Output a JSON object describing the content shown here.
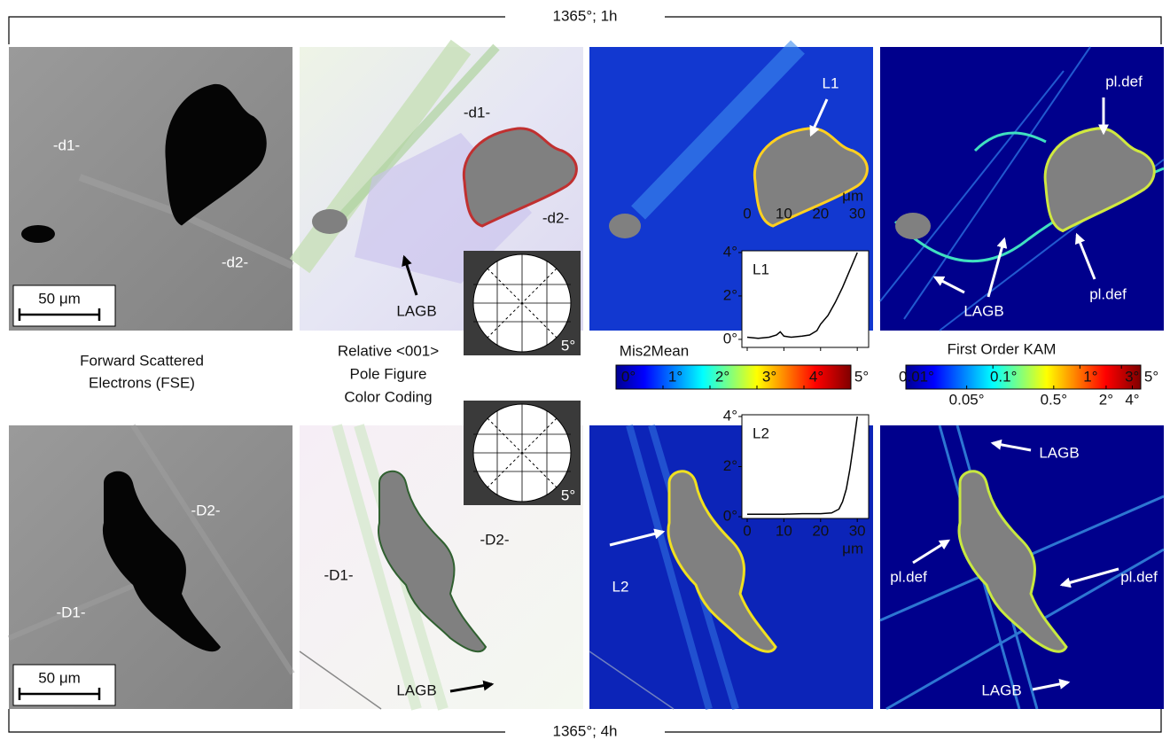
{
  "title_top": "1365°; 1h",
  "title_bottom": "1365°; 4h",
  "captions": {
    "fse": [
      "Forward Scattered",
      "Electrons (FSE)"
    ],
    "pole": [
      "Relative <001>",
      "Pole Figure",
      "Color Coding"
    ]
  },
  "panels": {
    "fse_1h": {
      "labels": [
        "-d1-",
        "-d2-"
      ],
      "scale_bar": "50 μm"
    },
    "pole_1h": {
      "labels": [
        "-d1-",
        "-d2-",
        "LAGB"
      ],
      "inset_label": "5°"
    },
    "mis_1h": {
      "labels": [
        "L1"
      ]
    },
    "kam_1h": {
      "labels": [
        "pl.def",
        "LAGB",
        "pl.def"
      ]
    },
    "fse_4h": {
      "labels": [
        "-D2-",
        "-D1-"
      ],
      "scale_bar": "50 μm"
    },
    "pole_4h": {
      "labels": [
        "-D1-",
        "-D2-",
        "LAGB"
      ],
      "inset_label": "5°"
    },
    "mis_4h": {
      "labels": [
        "L2"
      ]
    },
    "kam_4h": {
      "labels": [
        "LAGB",
        "pl.def",
        "pl.def",
        "LAGB"
      ]
    }
  },
  "colorbars": [
    {
      "title": "Mis2Mean",
      "range": [
        0,
        5
      ],
      "ticks": [
        {
          "value": 0,
          "label": "0°"
        },
        {
          "value": 1,
          "label": "1°"
        },
        {
          "value": 2,
          "label": "2°"
        },
        {
          "value": 3,
          "label": "3°"
        },
        {
          "value": 4,
          "label": "4°"
        },
        {
          "value": 5,
          "label": "5°"
        }
      ]
    },
    {
      "title": "First Order KAM",
      "scale": "log",
      "range": [
        0.01,
        5
      ],
      "ticks_top": [
        {
          "value": 0.01,
          "label": "0.01°"
        },
        {
          "value": 0.1,
          "label": "0.1°"
        },
        {
          "value": 1,
          "label": "1°"
        },
        {
          "value": 3,
          "label": "3°"
        },
        {
          "value": 5,
          "label": "5°"
        }
      ],
      "ticks_bottom": [
        {
          "value": 0.05,
          "label": "0.05°"
        },
        {
          "value": 0.5,
          "label": "0.5°"
        },
        {
          "value": 2,
          "label": "2°"
        },
        {
          "value": 4,
          "label": "4°"
        }
      ]
    }
  ],
  "profiles": [
    {
      "name": "L1",
      "xlabel": "μm",
      "x": [
        0,
        3,
        6,
        8,
        9,
        10,
        12,
        15,
        17,
        19,
        20,
        22,
        24,
        26,
        28,
        30
      ],
      "y": [
        0.1,
        0.05,
        0.1,
        0.2,
        0.35,
        0.15,
        0.1,
        0.15,
        0.2,
        0.4,
        0.7,
        1.1,
        1.7,
        2.4,
        3.2,
        4.0
      ],
      "xlim": [
        -1.45,
        33.1
      ],
      "ylim": [
        -0.37,
        4.08
      ],
      "xticks": [
        0,
        10,
        20,
        30
      ],
      "yticks": [
        {
          "value": 0,
          "label": "0°"
        },
        {
          "value": 2,
          "label": "2°"
        },
        {
          "value": 4,
          "label": "4°"
        }
      ]
    },
    {
      "name": "L2",
      "xlabel": "μm",
      "x": [
        0,
        5,
        10,
        15,
        20,
        23,
        25,
        26,
        27,
        28,
        29,
        30
      ],
      "y": [
        0.1,
        0.1,
        0.1,
        0.12,
        0.12,
        0.15,
        0.3,
        0.6,
        1.1,
        1.9,
        2.9,
        4.0
      ],
      "xlim": [
        -1.45,
        33.1
      ],
      "ylim": [
        -0.07,
        4.07
      ],
      "xticks": [
        0,
        10,
        20,
        30
      ],
      "yticks": [
        {
          "value": 0,
          "label": "0°"
        },
        {
          "value": 2,
          "label": "2°"
        },
        {
          "value": 4,
          "label": "4°"
        }
      ]
    }
  ]
}
